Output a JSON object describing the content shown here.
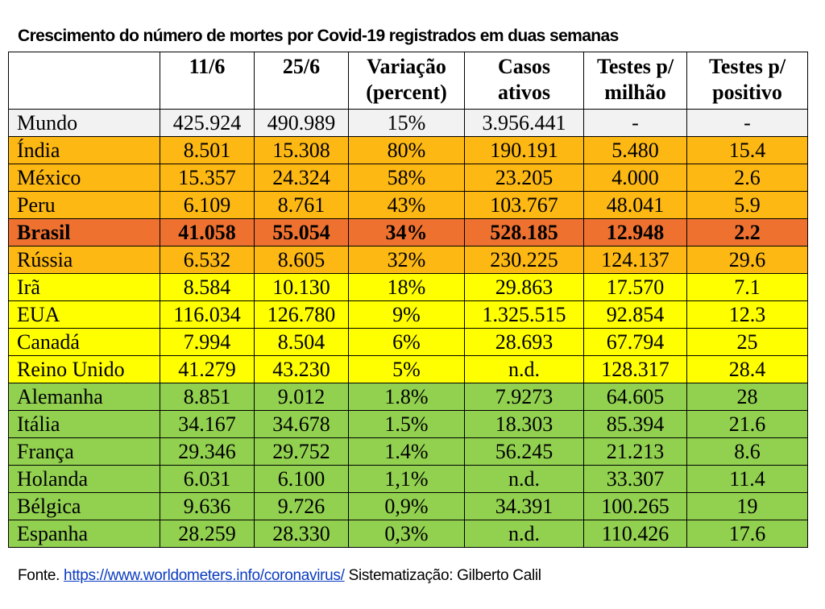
{
  "title": "Crescimento do número de mortes por Covid-19 registrados em duas semanas",
  "colors": {
    "world": "#f2f2f2",
    "orange": "#fdb813",
    "brasil": "#ee7130",
    "yellow": "#ffff00",
    "green": "#92d050",
    "header": "#ffffff"
  },
  "headers": [
    [
      ""
    ],
    [
      "11/6"
    ],
    [
      "25/6"
    ],
    [
      "Variação",
      "(percent)"
    ],
    [
      "Casos",
      "ativos"
    ],
    [
      "Testes p/",
      "milhão"
    ],
    [
      "Testes p/",
      "positivo"
    ]
  ],
  "rows": [
    {
      "country": "Mundo",
      "d11": "425.924",
      "d25": "490.989",
      "var": "15%",
      "casos": "3.956.441",
      "testes_milhao": "-",
      "testes_positivo": "-",
      "color": "#f2f2f2",
      "bold": false
    },
    {
      "country": "Índia",
      "d11": "8.501",
      "d25": "15.308",
      "var": "80%",
      "casos": "190.191",
      "testes_milhao": "5.480",
      "testes_positivo": "15.4",
      "color": "#fdb813",
      "bold": false
    },
    {
      "country": "México",
      "d11": "15.357",
      "d25": "24.324",
      "var": "58%",
      "casos": "23.205",
      "testes_milhao": "4.000",
      "testes_positivo": "2.6",
      "color": "#fdb813",
      "bold": false
    },
    {
      "country": "Peru",
      "d11": "6.109",
      "d25": "8.761",
      "var": "43%",
      "casos": "103.767",
      "testes_milhao": "48.041",
      "testes_positivo": "5.9",
      "color": "#fdb813",
      "bold": false
    },
    {
      "country": "Brasil",
      "d11": "41.058",
      "d25": "55.054",
      "var": "34%",
      "casos": "528.185",
      "testes_milhao": "12.948",
      "testes_positivo": "2.2",
      "color": "#ee7130",
      "bold": true
    },
    {
      "country": "Rússia",
      "d11": "6.532",
      "d25": "8.605",
      "var": "32%",
      "casos": "230.225",
      "testes_milhao": "124.137",
      "testes_positivo": "29.6",
      "color": "#fdb813",
      "bold": false
    },
    {
      "country": "Irã",
      "d11": "8.584",
      "d25": "10.130",
      "var": "18%",
      "casos": "29.863",
      "testes_milhao": "17.570",
      "testes_positivo": "7.1",
      "color": "#ffff00",
      "bold": false
    },
    {
      "country": "EUA",
      "d11": "116.034",
      "d25": "126.780",
      "var": "9%",
      "casos": "1.325.515",
      "testes_milhao": "92.854",
      "testes_positivo": "12.3",
      "color": "#ffff00",
      "bold": false
    },
    {
      "country": "Canadá",
      "d11": "7.994",
      "d25": "8.504",
      "var": "6%",
      "casos": "28.693",
      "testes_milhao": "67.794",
      "testes_positivo": "25",
      "color": "#ffff00",
      "bold": false
    },
    {
      "country": "Reino Unido",
      "d11": "41.279",
      "d25": "43.230",
      "var": "5%",
      "casos": "n.d.",
      "testes_milhao": "128.317",
      "testes_positivo": "28.4",
      "color": "#ffff00",
      "bold": false
    },
    {
      "country": "Alemanha",
      "d11": "8.851",
      "d25": "9.012",
      "var": "1.8%",
      "casos": "7.9273",
      "testes_milhao": "64.605",
      "testes_positivo": "28",
      "color": "#92d050",
      "bold": false
    },
    {
      "country": "Itália",
      "d11": "34.167",
      "d25": "34.678",
      "var": "1.5%",
      "casos": "18.303",
      "testes_milhao": "85.394",
      "testes_positivo": "21.6",
      "color": "#92d050",
      "bold": false
    },
    {
      "country": "França",
      "d11": "29.346",
      "d25": "29.752",
      "var": "1.4%",
      "casos": "56.245",
      "testes_milhao": "21.213",
      "testes_positivo": "8.6",
      "color": "#92d050",
      "bold": false
    },
    {
      "country": "Holanda",
      "d11": "6.031",
      "d25": "6.100",
      "var": "1,1%",
      "casos": "n.d.",
      "testes_milhao": "33.307",
      "testes_positivo": "11.4",
      "color": "#92d050",
      "bold": false
    },
    {
      "country": "Bélgica",
      "d11": "9.636",
      "d25": "9.726",
      "var": "0,9%",
      "casos": "34.391",
      "testes_milhao": "100.265",
      "testes_positivo": "19",
      "color": "#92d050",
      "bold": false
    },
    {
      "country": "Espanha",
      "d11": "28.259",
      "d25": "28.330",
      "var": "0,3%",
      "casos": "n.d.",
      "testes_milhao": "110.426",
      "testes_positivo": "17.6",
      "color": "#92d050",
      "bold": false
    }
  ],
  "source": {
    "prefix": "Fonte. ",
    "link": "https://www.worldometers.info/coronavirus/",
    "suffix": " Sistematização: Gilberto Calil"
  }
}
